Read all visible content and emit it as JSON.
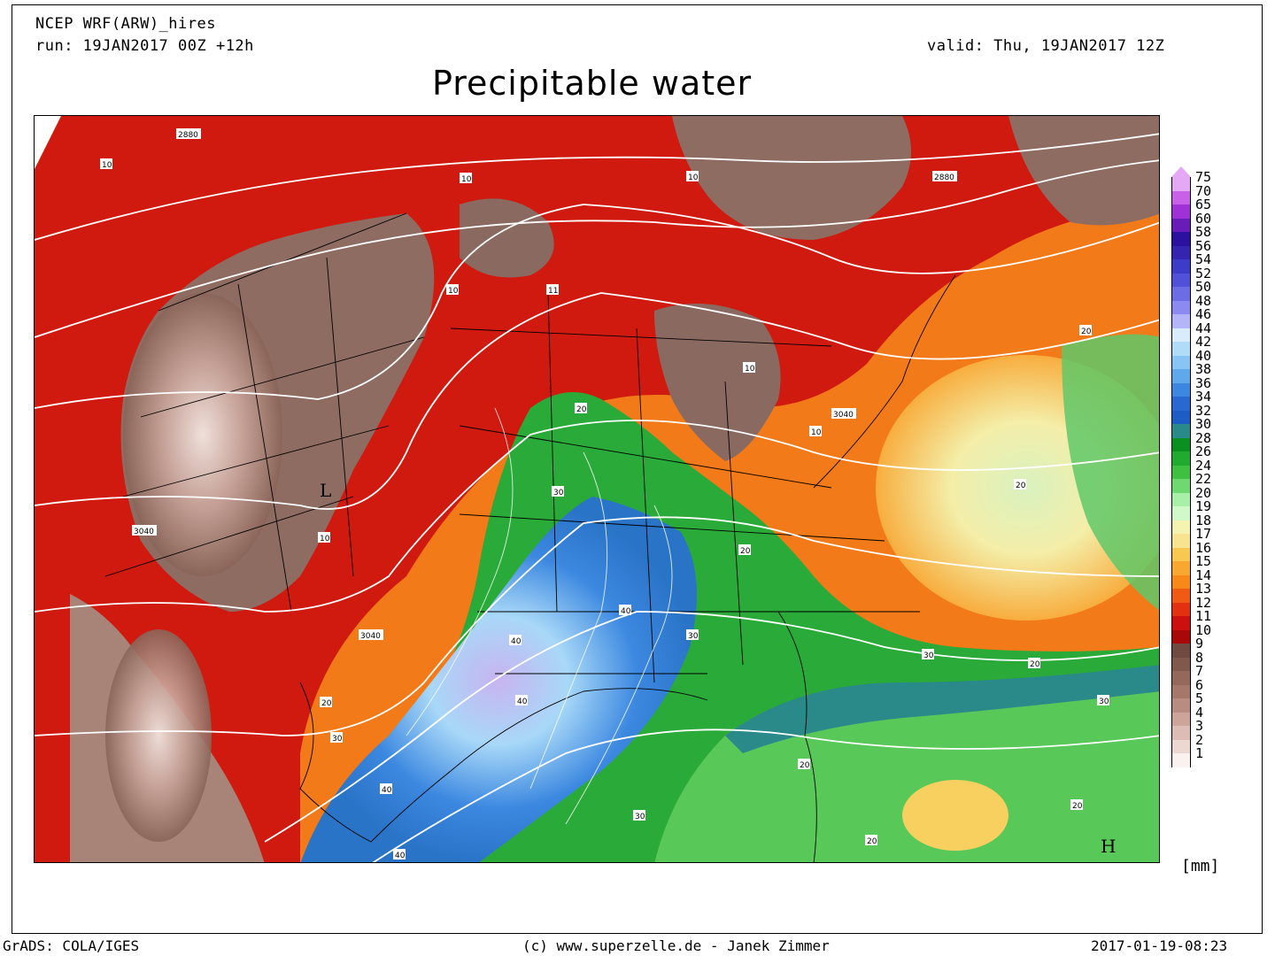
{
  "header": {
    "model": "NCEP WRF(ARW)_hires",
    "run": "run: 19JAN2017 00Z +12h",
    "valid": "valid: Thu, 19JAN2017 12Z",
    "title": "Precipitable water"
  },
  "footer": {
    "left": "GrADS: COLA/IGES",
    "center": "(c) www.superzelle.de - Janek Zimmer",
    "right": "2017-01-19-08:23"
  },
  "legend": {
    "unit": "[mm]",
    "levels": [
      {
        "v": "75",
        "c": "#e4a8f4"
      },
      {
        "v": "70",
        "c": "#c860e8"
      },
      {
        "v": "65",
        "c": "#a030d8"
      },
      {
        "v": "60",
        "c": "#6a1cb8"
      },
      {
        "v": "58",
        "c": "#2c10a0"
      },
      {
        "v": "56",
        "c": "#3424b0"
      },
      {
        "v": "54",
        "c": "#3c3cc8"
      },
      {
        "v": "52",
        "c": "#5050d8"
      },
      {
        "v": "50",
        "c": "#6c6ce4"
      },
      {
        "v": "48",
        "c": "#8a8af0"
      },
      {
        "v": "46",
        "c": "#b4b4f8"
      },
      {
        "v": "44",
        "c": "#d8ecfc"
      },
      {
        "v": "42",
        "c": "#b0dcf8"
      },
      {
        "v": "40",
        "c": "#88c4f4"
      },
      {
        "v": "38",
        "c": "#60a8ec"
      },
      {
        "v": "36",
        "c": "#3c88e0"
      },
      {
        "v": "34",
        "c": "#2868d0"
      },
      {
        "v": "32",
        "c": "#1c5cc4"
      },
      {
        "v": "30",
        "c": "#2a8a8a"
      },
      {
        "v": "28",
        "c": "#0a9020"
      },
      {
        "v": "26",
        "c": "#20aa30"
      },
      {
        "v": "24",
        "c": "#40c040"
      },
      {
        "v": "22",
        "c": "#70d870"
      },
      {
        "v": "20",
        "c": "#a8f0a8"
      },
      {
        "v": "19",
        "c": "#d0f8c8"
      },
      {
        "v": "18",
        "c": "#f4f4b0"
      },
      {
        "v": "17",
        "c": "#f8e490"
      },
      {
        "v": "16",
        "c": "#f8c850"
      },
      {
        "v": "15",
        "c": "#f8a830"
      },
      {
        "v": "14",
        "c": "#f88818"
      },
      {
        "v": "13",
        "c": "#f05a14"
      },
      {
        "v": "12",
        "c": "#e23010"
      },
      {
        "v": "11",
        "c": "#cc1010"
      },
      {
        "v": "10",
        "c": "#a80808"
      },
      {
        "v": "9",
        "c": "#6e4a40"
      },
      {
        "v": "8",
        "c": "#80584c"
      },
      {
        "v": "7",
        "c": "#94685a"
      },
      {
        "v": "6",
        "c": "#a6786c"
      },
      {
        "v": "5",
        "c": "#b88c80"
      },
      {
        "v": "4",
        "c": "#cca49a"
      },
      {
        "v": "3",
        "c": "#dcbcb4"
      },
      {
        "v": "2",
        "c": "#ecd8d0"
      },
      {
        "v": "1",
        "c": "#faf2ee"
      }
    ]
  },
  "map": {
    "contour_labels": [
      "2880",
      "3040",
      "10",
      "20",
      "30",
      "40",
      "11"
    ],
    "pressure_centers": {
      "low": "L",
      "high": "H"
    }
  }
}
